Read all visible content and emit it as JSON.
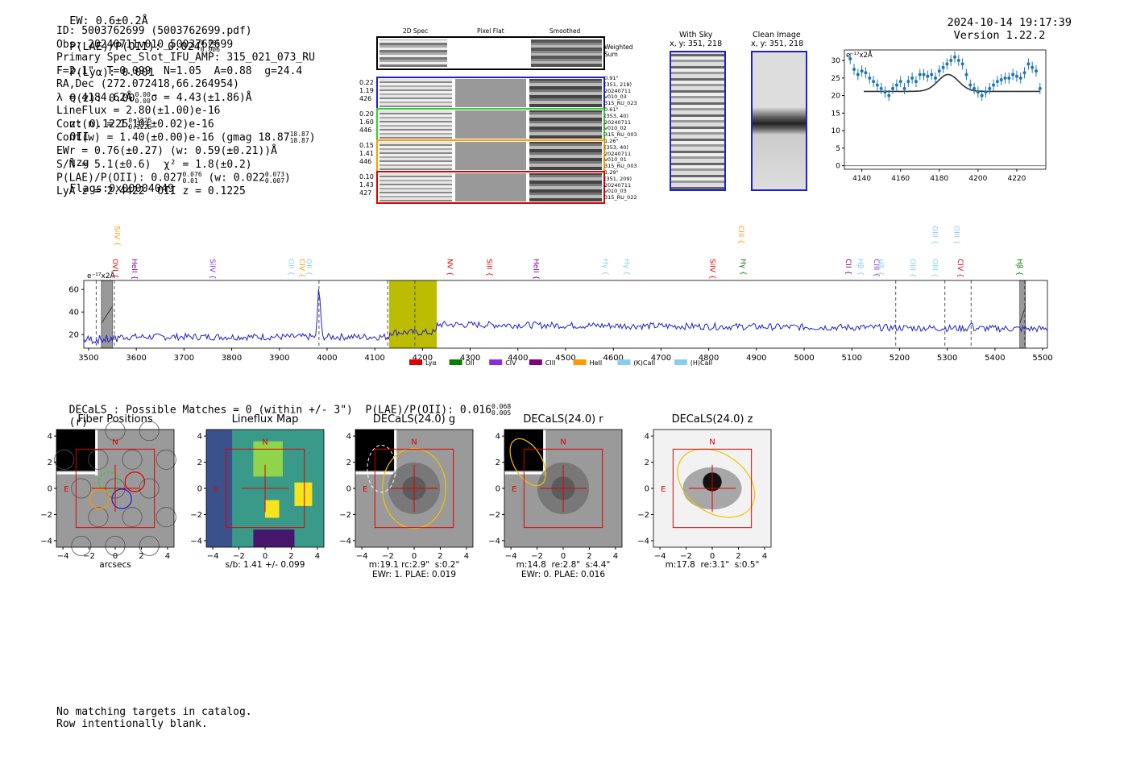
{
  "header": {
    "ew": "EW: 0.6±0.2Å",
    "plae": "P(LAE)/P(OII): 0.024",
    "plae_hi": "0.066",
    "plae_lo": "0.006",
    "plya": "P(Lyα): 0.001",
    "qz": "Q(z): 0.00",
    "qz_hi": "0.00",
    "qz_lo": "0.00",
    "z": "z: 0.1225",
    "z_hi": "0.1225",
    "z_lo": "0.1225",
    "line": "OII",
    "tag": "lzg",
    "flags": "Flags:0x00004049",
    "timestamp": "2024-10-14 19:17:39",
    "version": "Version 1.22.2"
  },
  "info": {
    "lines": [
      "ID: 5003762699 (5003762699.pdf)",
      "Obs: 20240711v010_5003762699",
      "Primary Spec_Slot_IFU_AMP: 315_021_073_RU",
      "F=2.1\"  T=0.099  N=1.05  A=0.88  g=24.4",
      "RA,Dec (272.072418,66.264954)",
      "λ = 4184.62Å   σ = 4.43(±1.86)Å",
      "LineFlux = 2.80(±1.00)e-16",
      "Cont(n) = 1.10(±0.02)e-16",
      "Cont(w) = 1.40(±0.00)e-16 (gmag 18.87",
      "EWr = 0.76(±0.27) (w: 0.59(±0.21))Å",
      "S/N = 5.1(±0.6)  χ² = 1.8(±0.2)",
      "P(LAE)/P(OII): 0.027",
      "LyA z = 2.4422  OII z = 0.1225"
    ],
    "gmag_hi": "18.87",
    "gmag_lo": "18.87",
    "plae_hi": "0.076",
    "plae_lo": "0.01",
    "plae_w": "(w: 0.022",
    "plae_w_hi": "0.073",
    "plae_w_lo": "0.007"
  },
  "cutouts": {
    "col_2d": "2D Spec",
    "col_flat": "Pixel Flat",
    "col_smooth": "Smoothed",
    "weighted": "Weighted Sum",
    "rows": [
      {
        "left": [
          "0.22",
          "1.19",
          "426"
        ],
        "right": [
          "0.91\"",
          "(351, 218)",
          "20240711",
          "v010_03",
          "315_RU_023"
        ],
        "color": "#1f1fd0"
      },
      {
        "left": [
          "0.20",
          "1.60",
          "446"
        ],
        "right": [
          "0.61\"",
          "(353, 40)",
          "20240711",
          "v010_02",
          "315_RU_003"
        ],
        "color": "#33cc33"
      },
      {
        "left": [
          "0.15",
          "1.41",
          "446"
        ],
        "right": [
          "1.26\"",
          "(353, 40)",
          "20240711",
          "v010_01",
          "315_RU_003"
        ],
        "color": "#ff9900"
      },
      {
        "left": [
          "0.10",
          "1.43",
          "427"
        ],
        "right": [
          "1.29\"",
          "(351, 209)",
          "20240711",
          "v010_03",
          "315_RU_022"
        ],
        "color": "#e00000"
      }
    ],
    "with_sky": "With Sky",
    "with_sky_xy": "x, y: 351, 218",
    "clean": "Clean Image",
    "clean_xy": "x, y: 351, 218"
  },
  "fit_plot": {
    "unit": "e⁻¹⁷x2Å",
    "x": [
      4134,
      4136,
      4138,
      4140,
      4142,
      4144,
      4146,
      4148,
      4150,
      4152,
      4154,
      4156,
      4158,
      4160,
      4162,
      4164,
      4166,
      4168,
      4170,
      4172,
      4174,
      4176,
      4178,
      4180,
      4182,
      4184,
      4186,
      4188,
      4190,
      4192,
      4194,
      4196,
      4198,
      4200,
      4202,
      4204,
      4206,
      4208,
      4210,
      4212,
      4214,
      4216,
      4218,
      4220,
      4222,
      4224,
      4226,
      4228,
      4230,
      4232
    ],
    "y": [
      30.5,
      27.5,
      26,
      27,
      26.5,
      25,
      24,
      23,
      22,
      21,
      20,
      22,
      23,
      24,
      22,
      24,
      25,
      24,
      26,
      26,
      25.5,
      26,
      25,
      27,
      28,
      29,
      30,
      31,
      30,
      29,
      26,
      23,
      22,
      21,
      20,
      21,
      22,
      23,
      24,
      24.5,
      25,
      25,
      26,
      25.5,
      25,
      26.5,
      29,
      28,
      27,
      22
    ],
    "fit_baseline": 21.2,
    "fit_peak": 26.0,
    "fit_center": 4184.6,
    "fit_sigma": 4.43,
    "ylim": [
      -1,
      33
    ],
    "xlim": [
      4131,
      4235
    ],
    "yticks": [
      "0",
      "5",
      "10",
      "15",
      "20",
      "25",
      "30"
    ],
    "xticks": [
      "4140",
      "4160",
      "4180",
      "4200",
      "4220"
    ]
  },
  "spectrum": {
    "unit": "e⁻¹⁷x2Å",
    "xlim": [
      3490,
      5510
    ],
    "ylim": [
      8,
      68
    ],
    "xticks": [
      "3500",
      "3600",
      "3700",
      "3800",
      "3900",
      "4000",
      "4100",
      "4200",
      "4300",
      "4400",
      "4500",
      "4600",
      "4700",
      "4800",
      "4900",
      "5000",
      "5100",
      "5200",
      "5300",
      "5400",
      "5500"
    ],
    "yticks": [
      "20",
      "40",
      "60"
    ],
    "highlight": [
      4130,
      4230
    ],
    "gray_bands": [
      [
        3527,
        3550
      ],
      [
        5452,
        5464
      ]
    ],
    "dashed_lines": [
      3516,
      3554,
      3983,
      4127,
      4184,
      5192,
      5295,
      5350,
      5462
    ],
    "peak_at": 3983,
    "lines": [
      {
        "label": "SiIV",
        "color": "#ff9900",
        "x": 3560,
        "row": 0
      },
      {
        "label": "OVI",
        "color": "#e00000",
        "x": 3556,
        "row": 1
      },
      {
        "label": "HeII",
        "color": "#800080",
        "x": 3596,
        "row": 1
      },
      {
        "label": "SiIV",
        "color": "#8a2be2",
        "x": 3760,
        "row": 1
      },
      {
        "label": "OII",
        "color": "#87ceeb",
        "x": 3925,
        "row": 1
      },
      {
        "label": "CIV",
        "color": "#ff9900",
        "x": 3948,
        "row": 1
      },
      {
        "label": "OII",
        "color": "#87ceeb",
        "x": 3962,
        "row": 1
      },
      {
        "label": "NV",
        "color": "#e00000",
        "x": 4258,
        "row": 1
      },
      {
        "label": "SiII",
        "color": "#e00000",
        "x": 4340,
        "row": 1
      },
      {
        "label": "HeII",
        "color": "#800080",
        "x": 4438,
        "row": 1
      },
      {
        "label": "Hγ",
        "color": "#87ceeb",
        "x": 4584,
        "row": 1
      },
      {
        "label": "Hγ",
        "color": "#87ceeb",
        "x": 4628,
        "row": 1
      },
      {
        "label": "SiIV",
        "color": "#e00000",
        "x": 4808,
        "row": 1
      },
      {
        "label": "CIII",
        "color": "#ff9900",
        "x": 4868,
        "row": 0
      },
      {
        "label": "Hγ",
        "color": "#008000",
        "x": 4872,
        "row": 1
      },
      {
        "label": "CII",
        "color": "#800080",
        "x": 5093,
        "row": 1
      },
      {
        "label": "Hβ",
        "color": "#87ceeb",
        "x": 5118,
        "row": 1
      },
      {
        "label": "CIII",
        "color": "#8a2be2",
        "x": 5152,
        "row": 1
      },
      {
        "label": "Hβ",
        "color": "#87ceeb",
        "x": 5160,
        "row": 1
      },
      {
        "label": "OIII",
        "color": "#87ceeb",
        "x": 5228,
        "row": 1
      },
      {
        "label": "OIII",
        "color": "#87ceeb",
        "x": 5274,
        "row": 0
      },
      {
        "label": "OIII",
        "color": "#87ceeb",
        "x": 5274,
        "row": 1
      },
      {
        "label": "OIII",
        "color": "#87ceeb",
        "x": 5320,
        "row": 0
      },
      {
        "label": "CIV",
        "color": "#e00000",
        "x": 5328,
        "row": 1
      },
      {
        "label": "Hβ",
        "color": "#008000",
        "x": 5452,
        "row": 1
      }
    ],
    "legend": [
      {
        "label": "Lyα",
        "color": "#e00000"
      },
      {
        "label": "OII",
        "color": "#008000"
      },
      {
        "label": "CIV",
        "color": "#8a2be2"
      },
      {
        "label": "CIII",
        "color": "#800080"
      },
      {
        "label": "HeII",
        "color": "#ff9900"
      },
      {
        "label": "(K)CaII",
        "color": "#87ceeb"
      },
      {
        "label": "(H)CaII",
        "color": "#87ceeb"
      }
    ]
  },
  "decals": {
    "header": "DECaLS : Possible Matches = 0 (within +/- 3\")  P(LAE)/P(OII): 0.016",
    "plae_hi": "0.068",
    "plae_lo": "0.005",
    "band": "(r)",
    "ticks": [
      "−4",
      "−2",
      "0",
      "2",
      "4"
    ],
    "yticks": [
      "4",
      "2",
      "0",
      "−2",
      "−4"
    ],
    "north": "N",
    "east": "E",
    "panels": [
      {
        "title": "Fiber Positions",
        "caption": "arcsecs"
      },
      {
        "title": "Lineflux Map",
        "caption": "s/b: 1.41 +/- 0.099"
      },
      {
        "title": "DECaLS(24.0) g",
        "caption": "m:19.1 rc:2.9\"  s:0.2\"\nEWr: 1. PLAE: 0.019"
      },
      {
        "title": "DECaLS(24.0) r",
        "caption": "m:14.8  re:2.8\"  s:4.4\"\nEWr: 0. PLAE: 0.016"
      },
      {
        "title": "DECaLS(24.0) z",
        "caption": "m:17.8  re:3.1\"  s:0.5\""
      }
    ]
  },
  "footer": {
    "line1": "No matching targets in catalog.",
    "line2": "Row intentionally blank."
  }
}
